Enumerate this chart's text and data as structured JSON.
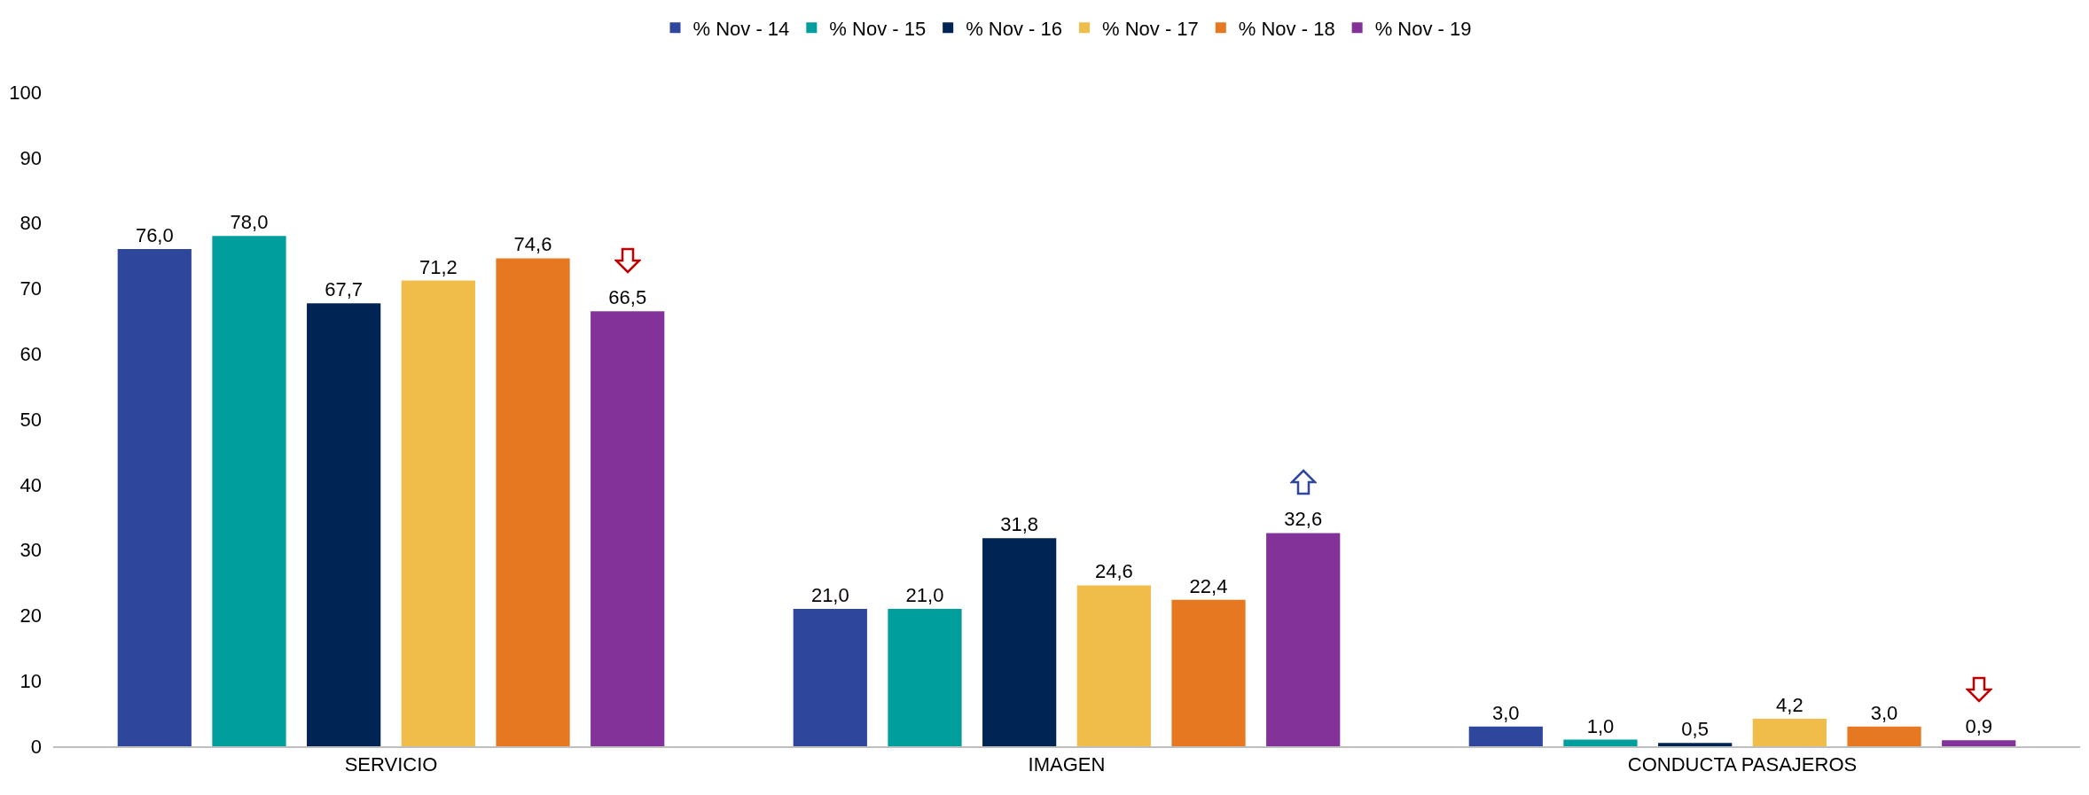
{
  "chart_data": {
    "type": "bar",
    "categories": [
      "SERVICIO",
      "IMAGEN",
      "CONDUCTA PASAJEROS"
    ],
    "series": [
      {
        "name": "% Nov - 14",
        "color": "#2e469c",
        "values": [
          76.0,
          21.0,
          3.0
        ],
        "value_labels": [
          "76,0",
          "21,0",
          "3,0"
        ]
      },
      {
        "name": "% Nov - 15",
        "color": "#009e9c",
        "values": [
          78.0,
          21.0,
          1.0
        ],
        "value_labels": [
          "78,0",
          "21,0",
          "1,0"
        ]
      },
      {
        "name": "% Nov - 16",
        "color": "#002453",
        "values": [
          67.7,
          31.8,
          0.5
        ],
        "value_labels": [
          "67,7",
          "31,8",
          "0,5"
        ]
      },
      {
        "name": "% Nov - 17",
        "color": "#f0bd4a",
        "values": [
          71.2,
          24.6,
          4.2
        ],
        "value_labels": [
          "71,2",
          "24,6",
          "4,2"
        ]
      },
      {
        "name": "% Nov - 18",
        "color": "#e77822",
        "values": [
          74.6,
          22.4,
          3.0
        ],
        "value_labels": [
          "74,6",
          "22,4",
          "3,0"
        ]
      },
      {
        "name": "% Nov - 19",
        "color": "#823298",
        "values": [
          66.5,
          32.6,
          0.9
        ],
        "value_labels": [
          "66,5",
          "32,6",
          "0,9"
        ]
      }
    ],
    "ylim": [
      0,
      100
    ],
    "yticks": [
      0,
      10,
      20,
      30,
      40,
      50,
      60,
      70,
      80,
      90,
      100
    ],
    "grid": false,
    "legend": "top"
  }
}
